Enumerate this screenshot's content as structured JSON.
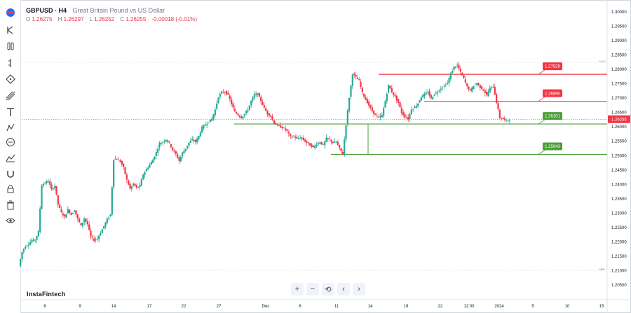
{
  "header": {
    "symbol": "GBPUSD · H4",
    "description": "Great Britain Pound vs US Dollar",
    "ohlc": [
      {
        "k": "O",
        "v": "1.26275"
      },
      {
        "k": "H",
        "v": "1.26297"
      },
      {
        "k": "L",
        "v": "1.26252"
      },
      {
        "k": "C",
        "v": "1.26255"
      },
      {
        "k": "",
        "v": "-0.00018 (-0.01%)"
      }
    ]
  },
  "logo": "InstaFintech",
  "toolbar": {
    "tools": [
      "brand-icon",
      "cursor-icon",
      "crosshair-icon",
      "trend-line-icon",
      "fib-icon",
      "brush-icon",
      "text-icon",
      "pattern-icon",
      "measure-icon",
      "zoom-icon",
      "magnet-icon",
      "lock-icon",
      "trash-icon",
      "eye-icon"
    ]
  },
  "navigation": {
    "zoom_in": "+",
    "zoom_out": "−",
    "reset": "⟲",
    "scroll_left": "‹",
    "scroll_right": "›"
  },
  "colors": {
    "up": "#26a69a",
    "up_fill": "#4caf50",
    "down": "#ef5350",
    "resistance": "#f23645",
    "support": "#4c9f38",
    "current": "#f23645"
  },
  "chart_data": {
    "type": "candlestick",
    "title": "",
    "ylim": [
      1.2035,
      1.3025
    ],
    "y_ticks": [
      "1.30000",
      "1.29500",
      "1.29000",
      "1.28500",
      "1.28000",
      "1.27500",
      "1.27000",
      "1.26500",
      "1.26000",
      "1.25500",
      "1.25000",
      "1.24500",
      "1.24000",
      "1.23500",
      "1.23000",
      "1.22500",
      "1.22000",
      "1.21500",
      "1.21000",
      "1.20500"
    ],
    "x_ticks": [
      "6",
      "9",
      "14",
      "17",
      "22",
      "27",
      "Dec",
      "6",
      "11",
      "14",
      "19",
      "22",
      "12:00",
      "2024",
      "5",
      "10",
      "15"
    ],
    "current_price": "1.26255",
    "high_marker": "MAX",
    "low_marker": "MIN",
    "levels": [
      {
        "name": "resistance-1",
        "value": 1.27829,
        "label": "1.27829",
        "kind": "resistance"
      },
      {
        "name": "resistance-2",
        "value": 1.2689,
        "label": "1.26890",
        "kind": "resistance"
      },
      {
        "name": "support-1",
        "value": 1.26101,
        "label": "1.26101",
        "kind": "support"
      },
      {
        "name": "support-2",
        "value": 1.25043,
        "label": "1.25043",
        "kind": "support"
      }
    ],
    "close_path": [
      1.2115,
      1.2165,
      1.2185,
      1.2192,
      1.2205,
      1.2208,
      1.2235,
      1.2398,
      1.2405,
      1.2412,
      1.2382,
      1.2395,
      1.233,
      1.2302,
      1.2286,
      1.2312,
      1.2295,
      1.231,
      1.228,
      1.2256,
      1.2281,
      1.2261,
      1.2218,
      1.2206,
      1.2212,
      1.2232,
      1.2255,
      1.2278,
      1.2295,
      1.2488,
      1.2488,
      1.248,
      1.2458,
      1.2415,
      1.2385,
      1.2402,
      1.2388,
      1.2395,
      1.2435,
      1.2452,
      1.2468,
      1.2486,
      1.2512,
      1.2542,
      1.2548,
      1.2556,
      1.2543,
      1.252,
      1.2505,
      1.2482,
      1.251,
      1.2525,
      1.2545,
      1.2556,
      1.2548,
      1.2568,
      1.2598,
      1.2608,
      1.2618,
      1.2628,
      1.266,
      1.2705,
      1.2721,
      1.2722,
      1.271,
      1.268,
      1.2652,
      1.2641,
      1.2632,
      1.2645,
      1.266,
      1.269,
      1.2712,
      1.2715,
      1.269,
      1.2665,
      1.2646,
      1.2636,
      1.2614,
      1.2604,
      1.26,
      1.2595,
      1.2585,
      1.2565,
      1.2568,
      1.2558,
      1.2563,
      1.2555,
      1.2545,
      1.2537,
      1.2528,
      1.254,
      1.2547,
      1.2536,
      1.256,
      1.2555,
      1.2545,
      1.2548,
      1.2525,
      1.2505,
      1.2608,
      1.2702,
      1.2785,
      1.2772,
      1.276,
      1.2718,
      1.2695,
      1.2675,
      1.2655,
      1.264,
      1.2632,
      1.264,
      1.269,
      1.2745,
      1.2721,
      1.2705,
      1.2684,
      1.265,
      1.2635,
      1.2628,
      1.2662,
      1.2668,
      1.2682,
      1.2705,
      1.2712,
      1.2722,
      1.2698,
      1.2715,
      1.2722,
      1.2735,
      1.2742,
      1.2752,
      1.2785,
      1.2808,
      1.2815,
      1.279,
      1.2768,
      1.274,
      1.2725,
      1.2744,
      1.2752,
      1.2738,
      1.2728,
      1.271,
      1.2735,
      1.2742,
      1.2685,
      1.2632,
      1.2628,
      1.2622,
      1.2626
    ]
  }
}
